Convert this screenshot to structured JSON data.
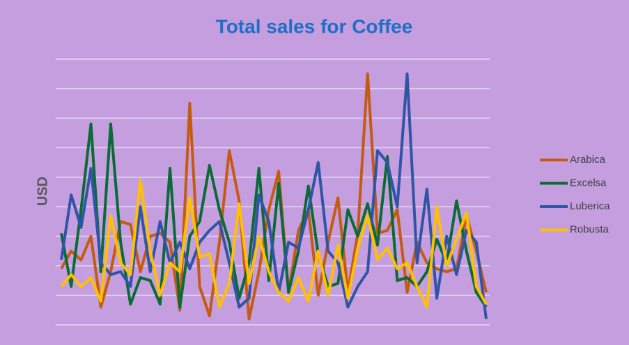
{
  "chart_data": {
    "type": "line",
    "title": "Total sales for Coffee",
    "y_label": "USD",
    "categories": [
      null,
      null,
      null,
      null,
      null,
      null,
      null,
      null,
      null,
      null,
      null,
      null,
      null,
      null,
      null,
      null,
      null,
      null,
      null,
      null,
      null,
      null,
      null,
      null,
      null,
      null,
      null,
      null,
      null,
      null,
      null,
      null,
      null,
      null,
      null,
      null,
      null,
      null,
      null,
      null,
      null,
      null,
      null,
      null
    ],
    "series": [
      {
        "name": "Arabica",
        "color": "#c55a11",
        "values": [
          1.9,
          2.5,
          2.2,
          3.0,
          0.6,
          1.8,
          3.5,
          3.4,
          1.8,
          3.0,
          3.1,
          2.8,
          0.5,
          7.5,
          1.3,
          0.3,
          2.8,
          5.9,
          4.2,
          0.2,
          1.8,
          3.9,
          5.2,
          1.1,
          3.2,
          3.9,
          1.0,
          2.8,
          4.3,
          1.1,
          3.1,
          8.5,
          3.1,
          3.2,
          3.9,
          1.1,
          2.8,
          2.1,
          1.9,
          1.8,
          1.9,
          3.7,
          2.5,
          1.1
        ]
      },
      {
        "name": "Excelsa",
        "color": "#0a6b36",
        "values": [
          3.1,
          1.3,
          3.9,
          6.8,
          1.8,
          6.8,
          2.8,
          0.7,
          1.6,
          1.5,
          0.7,
          5.3,
          0.6,
          3.0,
          3.5,
          5.4,
          3.9,
          2.8,
          0.9,
          2.1,
          5.3,
          1.5,
          4.8,
          1.1,
          2.5,
          4.7,
          2.4,
          1.3,
          1.4,
          3.9,
          3.0,
          4.1,
          2.7,
          5.7,
          1.5,
          1.6,
          1.3,
          1.8,
          2.9,
          2.1,
          4.2,
          2.5,
          1.1,
          0.6
        ]
      },
      {
        "name": "Luberica",
        "color": "#3055a5",
        "values": [
          2.2,
          4.4,
          3.3,
          5.3,
          2.1,
          1.7,
          1.8,
          1.3,
          4.0,
          1.8,
          3.5,
          2.1,
          2.8,
          1.9,
          2.8,
          3.2,
          3.5,
          2.1,
          0.6,
          0.9,
          4.4,
          3.5,
          1.1,
          2.8,
          2.6,
          3.9,
          5.5,
          2.5,
          2.1,
          0.6,
          1.3,
          1.8,
          5.9,
          5.5,
          4.0,
          8.5,
          2.1,
          4.6,
          0.9,
          3.0,
          1.7,
          3.2,
          2.8,
          0.2
        ]
      },
      {
        "name": "Robusta",
        "color": "#ffc000",
        "values": [
          1.3,
          1.7,
          1.3,
          1.6,
          0.8,
          3.7,
          2.1,
          1.7,
          4.9,
          2.5,
          1.0,
          2.1,
          1.8,
          4.3,
          2.3,
          2.4,
          0.6,
          1.4,
          4.1,
          1.4,
          3.0,
          1.8,
          1.1,
          0.8,
          1.6,
          0.8,
          2.5,
          1.0,
          2.7,
          0.9,
          2.6,
          3.7,
          2.2,
          2.6,
          1.9,
          2.1,
          1.3,
          0.6,
          4.0,
          2.0,
          2.9,
          3.8,
          1.3,
          0.7
        ]
      }
    ],
    "ylim": [
      0,
      9
    ],
    "yticks": [
      0,
      1,
      2,
      3,
      4,
      5,
      6,
      7,
      8,
      9
    ],
    "grid": true,
    "legend": "right"
  }
}
